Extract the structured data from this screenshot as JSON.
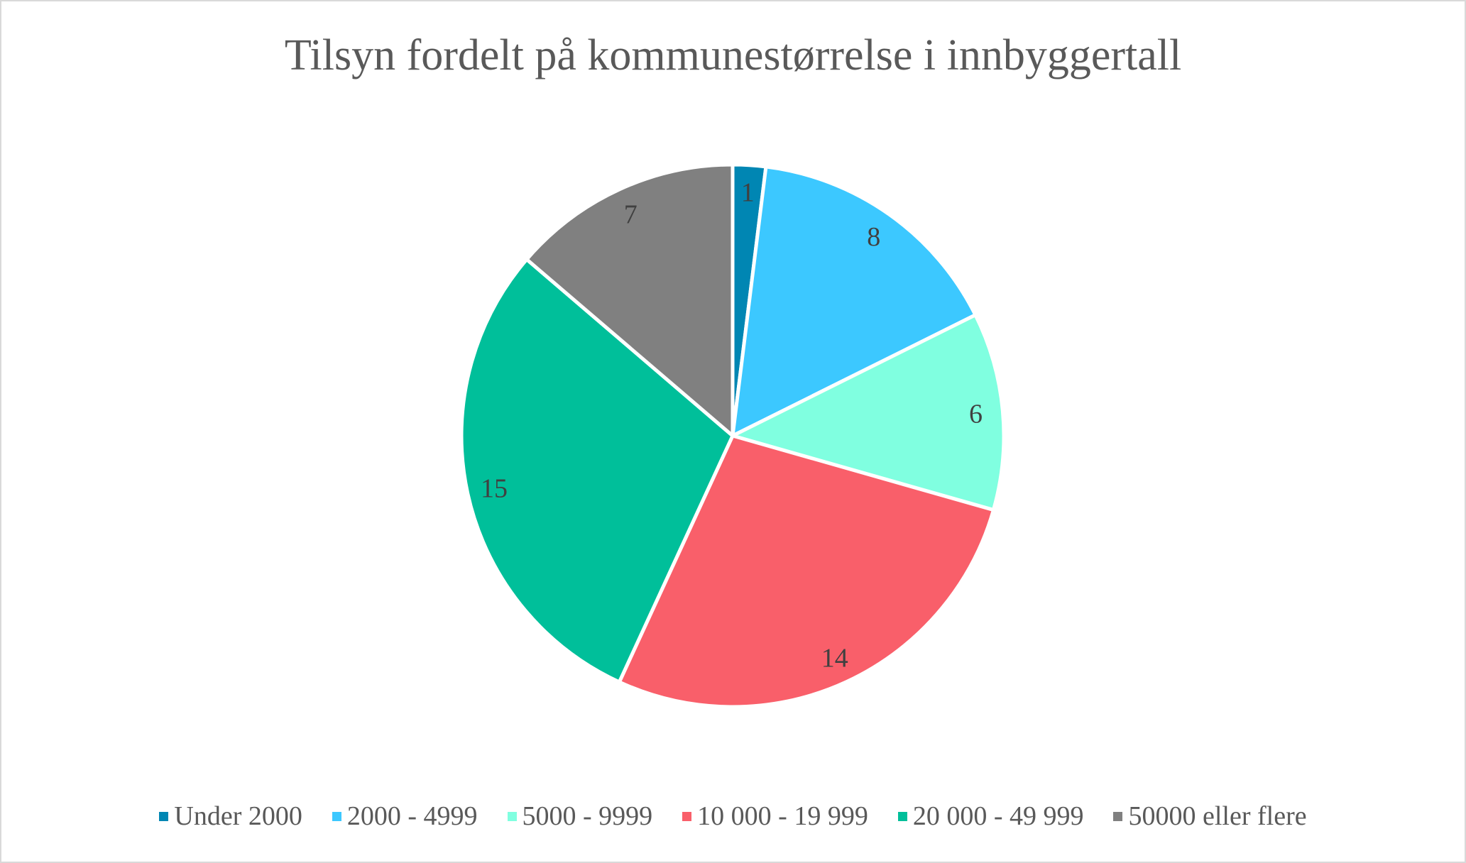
{
  "chart_data": {
    "type": "pie",
    "title": "Tilsyn fordelt på kommunestørrelse i innbyggertall",
    "categories": [
      "Under 2000",
      "2000 - 4999",
      "5000 - 9999",
      "10 000 - 19 999",
      "20 000 - 49 999",
      "50000 eller flere"
    ],
    "values": [
      1,
      8,
      6,
      14,
      15,
      7
    ],
    "colors": [
      "#0086B3",
      "#3CC8FF",
      "#80FFE0",
      "#F95F6A",
      "#00BF9A",
      "#808080"
    ],
    "data_labels": [
      "1",
      "8",
      "6",
      "14",
      "15",
      "7"
    ],
    "start_angle_deg": 0,
    "direction": "clockwise",
    "legend_position": "bottom"
  },
  "legend": {
    "items": [
      {
        "label": "Under 2000",
        "color": "#0086B3"
      },
      {
        "label": "2000 - 4999",
        "color": "#3CC8FF"
      },
      {
        "label": "5000 - 9999",
        "color": "#80FFE0"
      },
      {
        "label": "10 000 - 19 999",
        "color": "#F95F6A"
      },
      {
        "label": "20 000 - 49 999",
        "color": "#00BF9A"
      },
      {
        "label": "50000 eller flere",
        "color": "#808080"
      }
    ]
  }
}
